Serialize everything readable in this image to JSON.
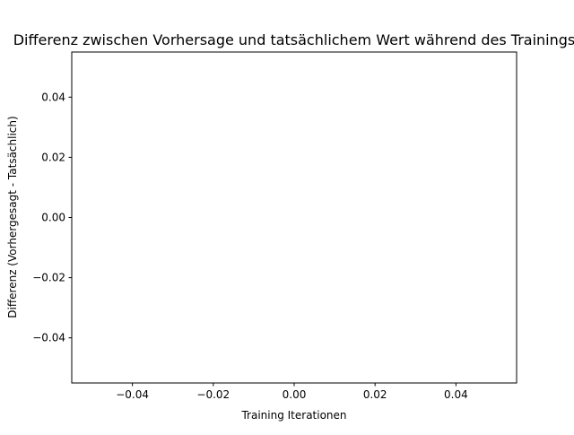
{
  "chart_data": {
    "type": "line",
    "title": "Differenz zwischen Vorhersage und tatsächlichem Wert während des Trainings",
    "xlabel": "Training Iterationen",
    "ylabel": "Differenz (Vorhergesagt - Tatsächlich)",
    "xlim": [
      -0.055,
      0.055
    ],
    "ylim": [
      -0.055,
      0.055
    ],
    "x_ticks": [
      -0.04,
      -0.02,
      0.0,
      0.02,
      0.04
    ],
    "x_tick_labels": [
      "−0.04",
      "−0.02",
      "0.00",
      "0.02",
      "0.04"
    ],
    "y_ticks": [
      -0.04,
      -0.02,
      0.0,
      0.02,
      0.04
    ],
    "y_tick_labels": [
      "−0.04",
      "−0.02",
      "0.00",
      "0.02",
      "0.04"
    ],
    "grid": false,
    "series": [
      {
        "x": [],
        "y": []
      }
    ]
  }
}
